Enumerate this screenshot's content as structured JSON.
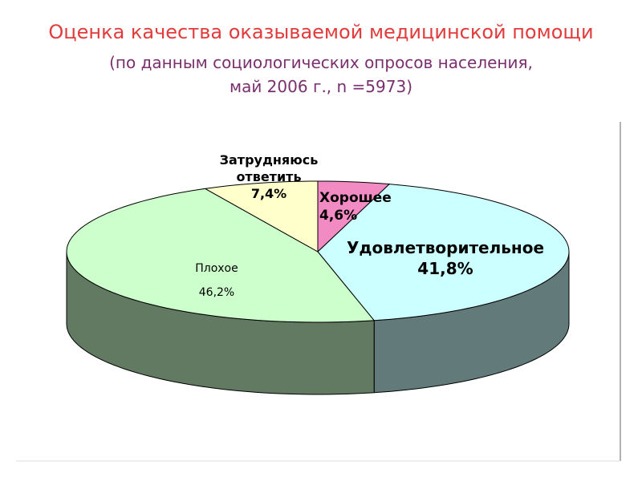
{
  "chart_data": {
    "type": "pie",
    "title": "Оценка качества оказываемой медицинской помощи",
    "subtitle": [
      "(по данным социологических опросов населения,",
      "май 2006 г., n =5973)"
    ],
    "categories": [
      "Хорошее",
      "Удовлетворительное",
      "Плохое",
      "Затрудняюсь ответить"
    ],
    "values": [
      4.6,
      41.8,
      46.2,
      7.4
    ],
    "value_labels": [
      "4,6%",
      "41,8%",
      "46,2%",
      "7,4%"
    ],
    "colors": [
      "#f28ac4",
      "#ccffff",
      "#ccffcc",
      "#ffffcc"
    ]
  }
}
